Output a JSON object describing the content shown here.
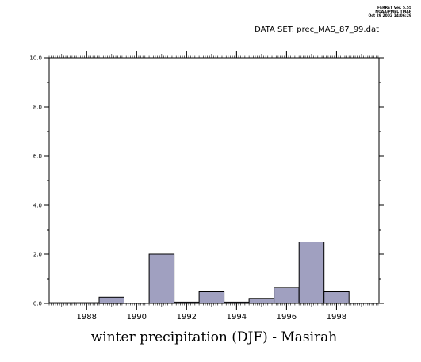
{
  "header": {
    "meta_line_1": "FERRET Ver. 5.55",
    "meta_line_2": "NOAA/PMEL TMAP",
    "meta_line_3": "Oct 29 2002 14:06:29",
    "dataset": "DATA SET: prec_MAS_87_99.dat"
  },
  "chart_data": {
    "type": "bar",
    "title": "",
    "xlabel": "winter precipitation (DJF) - Masirah",
    "ylabel": "",
    "xlim": [
      1986.5,
      1999.7
    ],
    "ylim": [
      0,
      10
    ],
    "yticks": [
      0,
      2,
      4,
      6,
      8,
      10
    ],
    "ytick_labels": [
      "0.0",
      "2.0",
      "4.0",
      "6.0",
      "8.0",
      "10.0"
    ],
    "xticks": [
      1988,
      1990,
      1992,
      1994,
      1996,
      1998
    ],
    "xtick_labels": [
      "1988",
      "1990",
      "1992",
      "1994",
      "1996",
      "1998"
    ],
    "bar_width_years": 1,
    "bar_color": "#a0a0c0",
    "grid": false,
    "bars": [
      {
        "x": 1987,
        "value": 0.03
      },
      {
        "x": 1988,
        "value": 0.03
      },
      {
        "x": 1989,
        "value": 0.25
      },
      {
        "x": 1990,
        "value": 0.0
      },
      {
        "x": 1991,
        "value": 2.0
      },
      {
        "x": 1992,
        "value": 0.05
      },
      {
        "x": 1993,
        "value": 0.5
      },
      {
        "x": 1994,
        "value": 0.05
      },
      {
        "x": 1995,
        "value": 0.2
      },
      {
        "x": 1996,
        "value": 0.65
      },
      {
        "x": 1997,
        "value": 2.5
      },
      {
        "x": 1998,
        "value": 0.5
      }
    ]
  }
}
